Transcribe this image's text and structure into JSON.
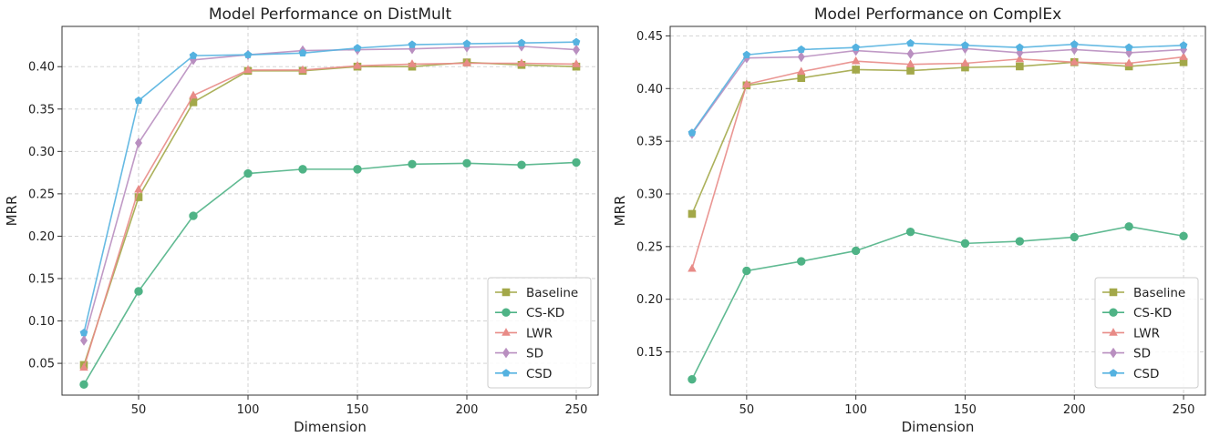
{
  "colors": {
    "Baseline": "#a3a849",
    "CS-KD": "#4fb386",
    "LWR": "#e88b87",
    "SD": "#b98fc0",
    "CSD": "#55b2e0"
  },
  "markers": {
    "Baseline": "square",
    "CS-KD": "circle",
    "LWR": "triangle",
    "SD": "diamond",
    "CSD": "pentagon"
  },
  "chart_data": [
    {
      "type": "line",
      "title": "Model Performance on DistMult",
      "xlabel": "Dimension",
      "ylabel": "MRR",
      "xlim": [
        15,
        260
      ],
      "ylim": [
        0.0125,
        0.4475
      ],
      "xticks": [
        50,
        100,
        150,
        200,
        250
      ],
      "yticks": [
        0.05,
        0.1,
        0.15,
        0.2,
        0.25,
        0.3,
        0.35,
        0.4
      ],
      "grid": true,
      "legend": "bottom-right",
      "x": [
        25,
        50,
        75,
        100,
        125,
        150,
        175,
        200,
        225,
        250
      ],
      "series": [
        {
          "name": "Baseline",
          "values": [
            0.048,
            0.246,
            0.358,
            0.395,
            0.395,
            0.4,
            0.4,
            0.405,
            0.402,
            0.4
          ]
        },
        {
          "name": "CS-KD",
          "values": [
            0.025,
            0.135,
            0.224,
            0.274,
            0.279,
            0.279,
            0.285,
            0.286,
            0.284,
            0.287
          ]
        },
        {
          "name": "LWR",
          "values": [
            0.045,
            0.255,
            0.366,
            0.396,
            0.396,
            0.401,
            0.403,
            0.404,
            0.404,
            0.403
          ]
        },
        {
          "name": "SD",
          "values": [
            0.077,
            0.31,
            0.408,
            0.414,
            0.419,
            0.42,
            0.421,
            0.423,
            0.424,
            0.42
          ]
        },
        {
          "name": "CSD",
          "values": [
            0.086,
            0.36,
            0.413,
            0.414,
            0.416,
            0.422,
            0.426,
            0.427,
            0.428,
            0.429
          ]
        }
      ]
    },
    {
      "type": "line",
      "title": "Model Performance on ComplEx",
      "xlabel": "Dimension",
      "ylabel": "MRR",
      "xlim": [
        15,
        260
      ],
      "ylim": [
        0.109,
        0.459
      ],
      "xticks": [
        50,
        100,
        150,
        200,
        250
      ],
      "yticks": [
        0.15,
        0.2,
        0.25,
        0.3,
        0.35,
        0.4,
        0.45
      ],
      "grid": true,
      "legend": "bottom-right",
      "x": [
        25,
        50,
        75,
        100,
        125,
        150,
        175,
        200,
        225,
        250
      ],
      "series": [
        {
          "name": "Baseline",
          "values": [
            0.281,
            0.403,
            0.41,
            0.418,
            0.417,
            0.42,
            0.421,
            0.425,
            0.421,
            0.425
          ]
        },
        {
          "name": "CS-KD",
          "values": [
            0.124,
            0.227,
            0.236,
            0.246,
            0.264,
            0.253,
            0.255,
            0.259,
            0.269,
            0.26
          ]
        },
        {
          "name": "LWR",
          "values": [
            0.229,
            0.404,
            0.416,
            0.426,
            0.423,
            0.424,
            0.428,
            0.425,
            0.424,
            0.43
          ]
        },
        {
          "name": "SD",
          "values": [
            0.357,
            0.429,
            0.43,
            0.436,
            0.433,
            0.438,
            0.434,
            0.437,
            0.434,
            0.437
          ]
        },
        {
          "name": "CSD",
          "values": [
            0.358,
            0.432,
            0.437,
            0.439,
            0.443,
            0.441,
            0.439,
            0.442,
            0.439,
            0.441
          ]
        }
      ]
    }
  ]
}
